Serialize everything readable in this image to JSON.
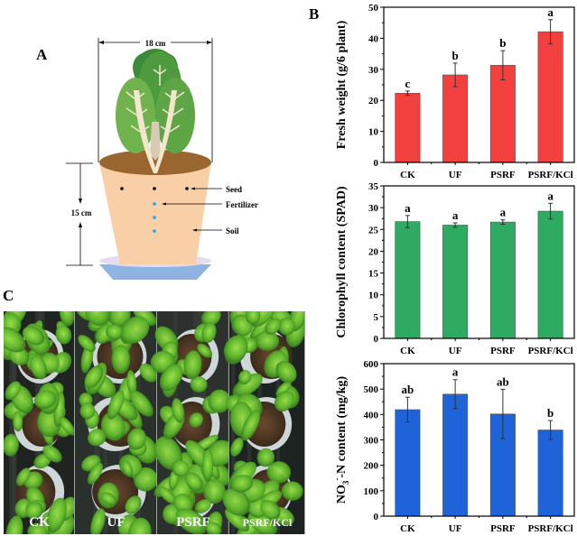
{
  "panels": {
    "a_label": "A",
    "b_label": "B",
    "c_label": "C"
  },
  "diagram": {
    "width_label": "18 cm",
    "height_label": "15 cm",
    "labels": {
      "seed": "Seed",
      "fertilizer": "Fertilizer",
      "soil": "Soil"
    },
    "colors": {
      "soil_top": "#9a6630",
      "pot": "#f9cfa8",
      "saucer_top": "#e4dcef",
      "saucer": "#8fb4e3",
      "seed": "#000000",
      "fertilizer": "#1ea7e8",
      "leaf_dark": "#3d8a3a",
      "leaf_light": "#6fb24e",
      "stem": "#f3e6cc"
    }
  },
  "photo": {
    "labels": [
      "CK",
      "UF",
      "PSRF",
      "PSRF/KCl"
    ]
  },
  "chart_data": [
    {
      "type": "bar",
      "id": "fresh-weight",
      "title": "",
      "xlabel": "",
      "ylabel": "Fresh weight (g/6 plant)",
      "categories": [
        "CK",
        "UF",
        "PSRF",
        "PSRF/KCl"
      ],
      "values": [
        22.3,
        28.2,
        31.3,
        42.1
      ],
      "errors": [
        0.7,
        3.8,
        4.7,
        3.9
      ],
      "letters": [
        "c",
        "b",
        "b",
        "a"
      ],
      "ylim": [
        0,
        50
      ],
      "yticks": [
        0,
        10,
        20,
        30,
        40,
        50
      ],
      "color": "#f2403f",
      "grid": false
    },
    {
      "type": "bar",
      "id": "chlorophyll",
      "title": "",
      "xlabel": "",
      "ylabel": "Chlorophyll content (SPAD)",
      "categories": [
        "CK",
        "UF",
        "PSRF",
        "PSRF/KCl"
      ],
      "values": [
        26.8,
        26.0,
        26.7,
        29.2
      ],
      "errors": [
        1.4,
        0.5,
        0.5,
        1.8
      ],
      "letters": [
        "a",
        "a",
        "a",
        "a"
      ],
      "ylim": [
        0,
        35
      ],
      "yticks": [
        0,
        5,
        10,
        15,
        20,
        25,
        30,
        35
      ],
      "color": "#2eaa63",
      "grid": false
    },
    {
      "type": "bar",
      "id": "nitrate",
      "title": "",
      "xlabel": "",
      "ylabel": "NO3--N content (mg/kg)",
      "ylabel_parts": {
        "pre": "NO",
        "sub": "3",
        "sup": "-",
        "post": "-N content (mg/kg)"
      },
      "categories": [
        "CK",
        "UF",
        "PSRF",
        "PSRF/KCl"
      ],
      "values": [
        419,
        480,
        402,
        339
      ],
      "errors": [
        49,
        57,
        97,
        37
      ],
      "letters": [
        "ab",
        "a",
        "ab",
        "b"
      ],
      "ylim": [
        0,
        600
      ],
      "yticks": [
        0,
        100,
        200,
        300,
        400,
        500,
        600
      ],
      "color": "#1e63d8",
      "grid": false
    }
  ]
}
